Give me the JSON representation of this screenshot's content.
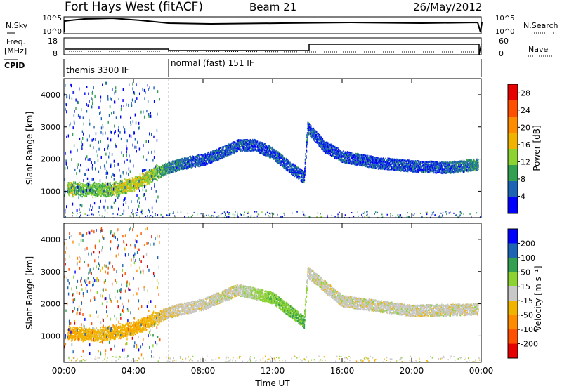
{
  "header": {
    "station": "Fort Hays West (fitACF)",
    "beam": "Beam 21",
    "date": "26/May/2012"
  },
  "mini_panels": {
    "nsky_label": "N.Sky",
    "nsearch_label": "N.Search",
    "freq_label_top": "Freq.",
    "freq_label_unit": "[MHz]",
    "nave_label": "Nave",
    "cpid_label": "CPID",
    "noise_ticks_left": [
      "10^5",
      "10^0"
    ],
    "noise_ticks_right": [
      "10^5",
      "10^0"
    ],
    "freq_ticks": [
      "18",
      "8"
    ],
    "nave_ticks": [
      "60",
      "0"
    ],
    "cpid_segments": [
      {
        "label": "themis 3300 IF",
        "start_hour": 0,
        "end_hour": 6
      },
      {
        "label": "normal (fast) 151 IF",
        "start_hour": 6,
        "end_hour": 24
      }
    ]
  },
  "colors": {
    "power_scale": [
      "#0000ff",
      "#1e64b4",
      "#32a050",
      "#8cd232",
      "#f0b400",
      "#ff8c00",
      "#ff5000",
      "#e60000"
    ],
    "velocity_scale": [
      "#e60000",
      "#ff5000",
      "#ff8c00",
      "#f0b400",
      "#c8c8c8",
      "#8cd232",
      "#32a050",
      "#1e64b4",
      "#0000ff"
    ]
  },
  "chart_data": [
    {
      "type": "heatmap",
      "title": "",
      "xlabel": "Time UT",
      "ylabel": "Slant Range [km]",
      "x_ticks": [
        "00:00",
        "04:00",
        "08:00",
        "12:00",
        "16:00",
        "20:00",
        "00:00"
      ],
      "xlim_hours": [
        0,
        24
      ],
      "ylim": [
        180,
        4500
      ],
      "y_ticks": [
        1000,
        2000,
        3000,
        4000
      ],
      "grid": false,
      "colorbar": {
        "label": "Power [dB]",
        "ticks": [
          4,
          8,
          12,
          16,
          20,
          24,
          28
        ],
        "range": [
          0,
          30
        ]
      },
      "scatter_bands": [
        {
          "t": 0.2,
          "r": 1100,
          "v": 14
        },
        {
          "t": 1.0,
          "r": 1080,
          "v": 12
        },
        {
          "t": 2.0,
          "r": 1050,
          "v": 12
        },
        {
          "t": 3.0,
          "r": 1100,
          "v": 14
        },
        {
          "t": 4.0,
          "r": 1250,
          "v": 16
        },
        {
          "t": 5.0,
          "r": 1500,
          "v": 14
        },
        {
          "t": 6.0,
          "r": 1750,
          "v": 8
        },
        {
          "t": 7.0,
          "r": 1900,
          "v": 6
        },
        {
          "t": 8.0,
          "r": 2000,
          "v": 5
        },
        {
          "t": 9.0,
          "r": 2200,
          "v": 6
        },
        {
          "t": 10.0,
          "r": 2450,
          "v": 5
        },
        {
          "t": 11.0,
          "r": 2450,
          "v": 5
        },
        {
          "t": 12.0,
          "r": 2200,
          "v": 5
        },
        {
          "t": 13.0,
          "r": 1750,
          "v": 5
        },
        {
          "t": 13.8,
          "r": 1450,
          "v": 5
        },
        {
          "t": 14.0,
          "r": 3000,
          "v": 5
        },
        {
          "t": 15.0,
          "r": 2400,
          "v": 5
        },
        {
          "t": 16.0,
          "r": 2100,
          "v": 5
        },
        {
          "t": 18.0,
          "r": 1900,
          "v": 5
        },
        {
          "t": 20.0,
          "r": 1800,
          "v": 5
        },
        {
          "t": 22.0,
          "r": 1750,
          "v": 5
        },
        {
          "t": 23.8,
          "r": 1850,
          "v": 9
        }
      ]
    },
    {
      "type": "heatmap",
      "title": "",
      "xlabel": "Time UT",
      "ylabel": "Slant Range [km]",
      "x_ticks": [
        "00:00",
        "04:00",
        "08:00",
        "12:00",
        "16:00",
        "20:00",
        "00:00"
      ],
      "xlim_hours": [
        0,
        24
      ],
      "ylim": [
        180,
        4500
      ],
      "y_ticks": [
        1000,
        2000,
        3000,
        4000
      ],
      "grid": false,
      "colorbar": {
        "label": "Velocity [m s⁻¹]",
        "ticks": [
          -200,
          -100,
          -50,
          -15,
          15,
          50,
          100,
          200
        ],
        "tick_labels": [
          "-200",
          "-100",
          "-50",
          "-15",
          "15",
          "50",
          "100",
          "200"
        ]
      },
      "scatter_bands": [
        {
          "t": 0.2,
          "r": 1100,
          "v": -40
        },
        {
          "t": 2.0,
          "r": 1050,
          "v": -30
        },
        {
          "t": 4.0,
          "r": 1250,
          "v": -40
        },
        {
          "t": 5.0,
          "r": 1500,
          "v": -30
        },
        {
          "t": 6.0,
          "r": 1750,
          "v": -10
        },
        {
          "t": 8.0,
          "r": 2000,
          "v": 0
        },
        {
          "t": 10.0,
          "r": 2450,
          "v": 0
        },
        {
          "t": 12.0,
          "r": 2200,
          "v": 40
        },
        {
          "t": 13.8,
          "r": 1450,
          "v": 50
        },
        {
          "t": 14.0,
          "r": 3000,
          "v": 0
        },
        {
          "t": 16.0,
          "r": 2100,
          "v": 0
        },
        {
          "t": 20.0,
          "r": 1800,
          "v": 0
        },
        {
          "t": 23.8,
          "r": 1850,
          "v": 0
        }
      ]
    }
  ]
}
